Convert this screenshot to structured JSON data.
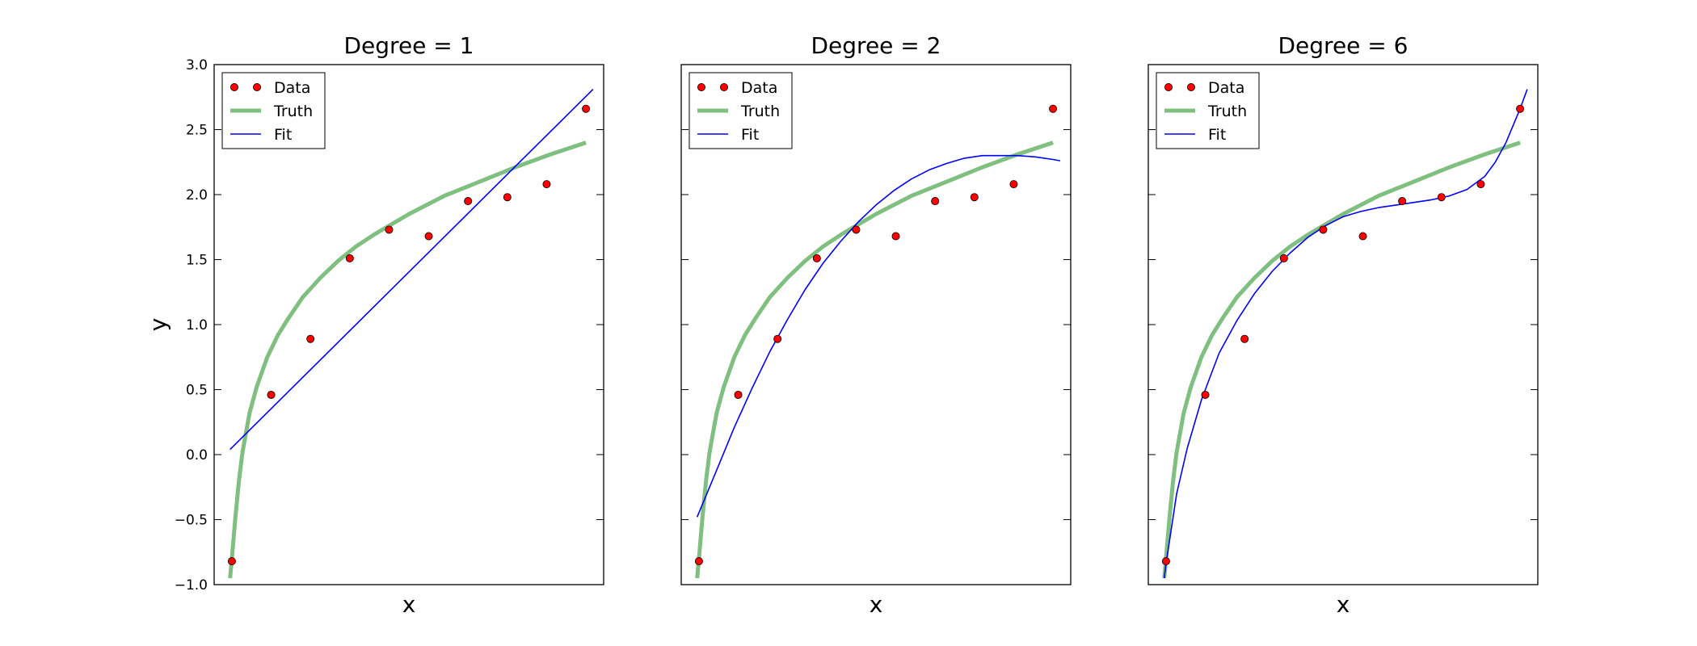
{
  "figure": {
    "ylabel": "y",
    "colors": {
      "data_marker": "#ff0000",
      "data_edge": "#000000",
      "truth": "#008000",
      "fit": "#0000ff",
      "axes": "#000000"
    }
  },
  "chart_data": [
    {
      "type": "line",
      "title": "Degree = 1",
      "xlabel": "x",
      "ylabel": "y",
      "xlim": [
        -0.05,
        1.05
      ],
      "ylim": [
        -1.0,
        3.0
      ],
      "yticks": [
        -1.0,
        -0.5,
        0.0,
        0.5,
        1.0,
        1.5,
        2.0,
        2.5,
        3.0
      ],
      "ytick_labels": [
        "−1.0",
        "−0.5",
        "0.0",
        "0.5",
        "1.0",
        "1.5",
        "2.0",
        "2.5",
        "3.0"
      ],
      "show_yticklabels": true,
      "legend": {
        "position": "top-left",
        "entries": [
          "Data",
          "Truth",
          "Fit"
        ]
      },
      "series": [
        {
          "name": "Data",
          "kind": "points",
          "x": [
            0.0,
            0.111,
            0.222,
            0.333,
            0.444,
            0.556,
            0.667,
            0.778,
            0.889,
            1.0
          ],
          "y": [
            -0.82,
            0.46,
            0.89,
            1.51,
            1.73,
            1.68,
            1.95,
            1.98,
            2.08,
            2.66
          ]
        },
        {
          "name": "Truth",
          "kind": "line",
          "x": [
            -0.005,
            0.0,
            0.01,
            0.02,
            0.03,
            0.05,
            0.07,
            0.1,
            0.13,
            0.16,
            0.2,
            0.25,
            0.3,
            0.35,
            0.4,
            0.5,
            0.6,
            0.7,
            0.8,
            0.9,
            1.0
          ],
          "y": [
            -0.95,
            -0.8,
            -0.48,
            -0.2,
            0.02,
            0.32,
            0.52,
            0.75,
            0.92,
            1.05,
            1.21,
            1.36,
            1.49,
            1.6,
            1.69,
            1.85,
            1.99,
            2.1,
            2.21,
            2.31,
            2.4
          ]
        },
        {
          "name": "Fit",
          "kind": "line",
          "x": [
            -0.005,
            1.02
          ],
          "y": [
            0.04,
            2.81
          ]
        }
      ]
    },
    {
      "type": "line",
      "title": "Degree = 2",
      "xlabel": "x",
      "ylabel": "",
      "xlim": [
        -0.05,
        1.05
      ],
      "ylim": [
        -1.0,
        3.0
      ],
      "yticks": [
        -1.0,
        -0.5,
        0.0,
        0.5,
        1.0,
        1.5,
        2.0,
        2.5,
        3.0
      ],
      "ytick_labels": [],
      "show_yticklabels": false,
      "legend": {
        "position": "top-left",
        "entries": [
          "Data",
          "Truth",
          "Fit"
        ]
      },
      "series": [
        {
          "name": "Data",
          "kind": "points",
          "x": [
            0.0,
            0.111,
            0.222,
            0.333,
            0.444,
            0.556,
            0.667,
            0.778,
            0.889,
            1.0
          ],
          "y": [
            -0.82,
            0.46,
            0.89,
            1.51,
            1.73,
            1.68,
            1.95,
            1.98,
            2.08,
            2.66
          ]
        },
        {
          "name": "Truth",
          "kind": "line",
          "x": [
            -0.005,
            0.0,
            0.01,
            0.02,
            0.03,
            0.05,
            0.07,
            0.1,
            0.13,
            0.16,
            0.2,
            0.25,
            0.3,
            0.35,
            0.4,
            0.5,
            0.6,
            0.7,
            0.8,
            0.9,
            1.0
          ],
          "y": [
            -0.95,
            -0.8,
            -0.48,
            -0.2,
            0.02,
            0.32,
            0.52,
            0.75,
            0.92,
            1.05,
            1.21,
            1.36,
            1.49,
            1.6,
            1.69,
            1.85,
            1.99,
            2.1,
            2.21,
            2.31,
            2.4
          ]
        },
        {
          "name": "Fit",
          "kind": "line",
          "x": [
            -0.005,
            0.05,
            0.1,
            0.15,
            0.2,
            0.25,
            0.3,
            0.35,
            0.4,
            0.45,
            0.5,
            0.55,
            0.6,
            0.65,
            0.7,
            0.75,
            0.8,
            0.85,
            0.9,
            0.95,
            1.0,
            1.02
          ],
          "y": [
            -0.48,
            -0.12,
            0.21,
            0.51,
            0.79,
            1.04,
            1.27,
            1.47,
            1.64,
            1.79,
            1.92,
            2.03,
            2.12,
            2.19,
            2.24,
            2.28,
            2.3,
            2.3,
            2.3,
            2.29,
            2.27,
            2.26
          ]
        }
      ]
    },
    {
      "type": "line",
      "title": "Degree = 6",
      "xlabel": "x",
      "ylabel": "",
      "xlim": [
        -0.05,
        1.05
      ],
      "ylim": [
        -1.0,
        3.0
      ],
      "yticks": [
        -1.0,
        -0.5,
        0.0,
        0.5,
        1.0,
        1.5,
        2.0,
        2.5,
        3.0
      ],
      "ytick_labels": [],
      "show_yticklabels": false,
      "legend": {
        "position": "top-left",
        "entries": [
          "Data",
          "Truth",
          "Fit"
        ]
      },
      "series": [
        {
          "name": "Data",
          "kind": "points",
          "x": [
            0.0,
            0.111,
            0.222,
            0.333,
            0.444,
            0.556,
            0.667,
            0.778,
            0.889,
            1.0
          ],
          "y": [
            -0.82,
            0.46,
            0.89,
            1.51,
            1.73,
            1.68,
            1.95,
            1.98,
            2.08,
            2.66
          ]
        },
        {
          "name": "Truth",
          "kind": "line",
          "x": [
            -0.005,
            0.0,
            0.01,
            0.02,
            0.03,
            0.05,
            0.07,
            0.1,
            0.13,
            0.16,
            0.2,
            0.25,
            0.3,
            0.35,
            0.4,
            0.5,
            0.6,
            0.7,
            0.8,
            0.9,
            1.0
          ],
          "y": [
            -0.95,
            -0.8,
            -0.48,
            -0.2,
            0.02,
            0.32,
            0.52,
            0.75,
            0.92,
            1.05,
            1.21,
            1.36,
            1.49,
            1.6,
            1.69,
            1.85,
            1.99,
            2.1,
            2.21,
            2.31,
            2.4
          ]
        },
        {
          "name": "Fit",
          "kind": "line",
          "x": [
            -0.005,
            0.0,
            0.03,
            0.06,
            0.1,
            0.15,
            0.2,
            0.25,
            0.3,
            0.35,
            0.4,
            0.45,
            0.5,
            0.55,
            0.6,
            0.65,
            0.7,
            0.75,
            0.8,
            0.85,
            0.9,
            0.93,
            0.96,
            1.0,
            1.02
          ],
          "y": [
            -0.95,
            -0.84,
            -0.3,
            0.05,
            0.42,
            0.78,
            1.03,
            1.24,
            1.41,
            1.55,
            1.67,
            1.76,
            1.83,
            1.87,
            1.9,
            1.92,
            1.94,
            1.96,
            1.99,
            2.04,
            2.14,
            2.25,
            2.4,
            2.66,
            2.81
          ]
        }
      ]
    }
  ]
}
